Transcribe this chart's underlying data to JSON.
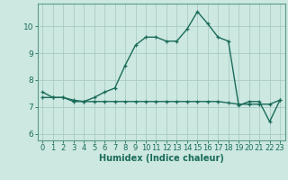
{
  "title": "",
  "xlabel": "Humidex (Indice chaleur)",
  "ylabel": "",
  "background_color": "#cce8e0",
  "grid_color": "#aaccC4",
  "line_color": "#1a6b5a",
  "xlim": [
    -0.5,
    23.5
  ],
  "ylim": [
    5.75,
    10.85
  ],
  "xticks": [
    0,
    1,
    2,
    3,
    4,
    5,
    6,
    7,
    8,
    9,
    10,
    11,
    12,
    13,
    14,
    15,
    16,
    17,
    18,
    19,
    20,
    21,
    22,
    23
  ],
  "yticks": [
    6,
    7,
    8,
    9,
    10
  ],
  "curve1_x": [
    0,
    1,
    2,
    3,
    4,
    5,
    6,
    7,
    8,
    9,
    10,
    11,
    12,
    13,
    14,
    15,
    16,
    17,
    18,
    19,
    20,
    21,
    22,
    23
  ],
  "curve1_y": [
    7.55,
    7.35,
    7.35,
    7.2,
    7.2,
    7.35,
    7.55,
    7.7,
    8.55,
    9.3,
    9.6,
    9.6,
    9.45,
    9.45,
    9.9,
    10.55,
    10.1,
    9.6,
    9.45,
    7.05,
    7.2,
    7.2,
    6.45,
    7.25
  ],
  "curve2_x": [
    0,
    1,
    2,
    3,
    4,
    5,
    6,
    7,
    8,
    9,
    10,
    11,
    12,
    13,
    14,
    15,
    16,
    17,
    18,
    19,
    20,
    21,
    22,
    23
  ],
  "curve2_y": [
    7.35,
    7.35,
    7.35,
    7.25,
    7.2,
    7.2,
    7.2,
    7.2,
    7.2,
    7.2,
    7.2,
    7.2,
    7.2,
    7.2,
    7.2,
    7.2,
    7.2,
    7.2,
    7.15,
    7.1,
    7.1,
    7.1,
    7.1,
    7.25
  ],
  "marker": "+",
  "markersize": 3.5,
  "linewidth": 1.0,
  "xlabel_fontsize": 7,
  "tick_fontsize": 6,
  "tick_color": "#1a6b5a",
  "axis_color": "#1a6b5a",
  "spine_color": "#5a9a8a"
}
